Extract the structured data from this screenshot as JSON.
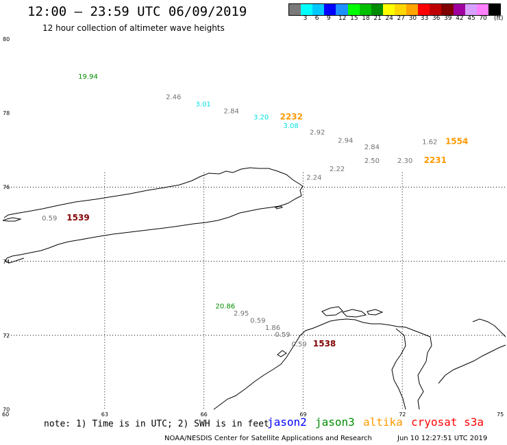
{
  "header": {
    "title": "12:00 – 23:59 UTC 06/09/2019",
    "subtitle": "12 hour collection of altimeter wave heights",
    "scale_unit": "(ft)"
  },
  "color_scale": [
    {
      "color": "#7a7a7a",
      "label": ""
    },
    {
      "color": "#00ffff",
      "label": "3"
    },
    {
      "color": "#00c8ff",
      "label": "6"
    },
    {
      "color": "#0000ff",
      "label": "9"
    },
    {
      "color": "#1e90ff",
      "label": "12"
    },
    {
      "color": "#00ff00",
      "label": "15"
    },
    {
      "color": "#00c000",
      "label": "18"
    },
    {
      "color": "#008c00",
      "label": "21"
    },
    {
      "color": "#ffff00",
      "label": "24"
    },
    {
      "color": "#ffd700",
      "label": "27"
    },
    {
      "color": "#ffa500",
      "label": "30"
    },
    {
      "color": "#ff0000",
      "label": "33"
    },
    {
      "color": "#c00000",
      "label": "36"
    },
    {
      "color": "#800000",
      "label": "39"
    },
    {
      "color": "#a000a0",
      "label": "42"
    },
    {
      "color": "#d8a0ff",
      "label": "45"
    },
    {
      "color": "#ff80ff",
      "label": "70"
    },
    {
      "color": "#000000",
      "label": ""
    }
  ],
  "axes": {
    "lat_labels": [
      "80",
      "78",
      "76",
      "74",
      "72",
      "70"
    ],
    "lon_labels": [
      "60",
      "63",
      "66",
      "69",
      "72",
      "75"
    ]
  },
  "observations": [
    {
      "text": "19.94",
      "color": "#008c00",
      "lon": 62.2,
      "lat": 78.93
    },
    {
      "text": "2.46",
      "color": "#707070",
      "lon": 64.85,
      "lat": 78.37
    },
    {
      "text": "3.01",
      "color": "#00e0e0",
      "lon": 65.75,
      "lat": 78.18
    },
    {
      "text": "2.84",
      "color": "#707070",
      "lon": 66.6,
      "lat": 77.99
    },
    {
      "text": "3.20",
      "color": "#00e0e0",
      "lon": 67.5,
      "lat": 77.83
    },
    {
      "text": "2232",
      "color": "#ff9900",
      "lon": 68.3,
      "lat": 77.83,
      "bold": true
    },
    {
      "text": "3.08",
      "color": "#00e0e0",
      "lon": 68.4,
      "lat": 77.6
    },
    {
      "text": "2.92",
      "color": "#707070",
      "lon": 69.2,
      "lat": 77.42
    },
    {
      "text": "2.94",
      "color": "#707070",
      "lon": 70.05,
      "lat": 77.2
    },
    {
      "text": "2.84",
      "color": "#707070",
      "lon": 70.85,
      "lat": 77.02
    },
    {
      "text": "1.62",
      "color": "#707070",
      "lon": 72.6,
      "lat": 77.16
    },
    {
      "text": "1554",
      "color": "#ff9900",
      "lon": 73.3,
      "lat": 77.16,
      "bold": true
    },
    {
      "text": "2.50",
      "color": "#707070",
      "lon": 70.85,
      "lat": 76.65
    },
    {
      "text": "2.30",
      "color": "#707070",
      "lon": 71.85,
      "lat": 76.65
    },
    {
      "text": "2231",
      "color": "#ff9900",
      "lon": 72.65,
      "lat": 76.65,
      "bold": true
    },
    {
      "text": "2.22",
      "color": "#707070",
      "lon": 69.8,
      "lat": 76.43
    },
    {
      "text": "2.24",
      "color": "#707070",
      "lon": 69.1,
      "lat": 76.2
    },
    {
      "text": "0.59",
      "color": "#707070",
      "lon": 61.1,
      "lat": 75.1
    },
    {
      "text": "1539",
      "color": "#800000",
      "lon": 61.85,
      "lat": 75.1,
      "bold": true
    },
    {
      "text": "20.86",
      "color": "#008c00",
      "lon": 66.35,
      "lat": 72.73
    },
    {
      "text": "2.95",
      "color": "#707070",
      "lon": 66.9,
      "lat": 72.53
    },
    {
      "text": "0.59",
      "color": "#707070",
      "lon": 67.4,
      "lat": 72.34
    },
    {
      "text": "1.86",
      "color": "#707070",
      "lon": 67.85,
      "lat": 72.14
    },
    {
      "text": "0.59",
      "color": "#707070",
      "lon": 68.15,
      "lat": 71.96
    },
    {
      "text": "0.59",
      "color": "#707070",
      "lon": 68.65,
      "lat": 71.7
    },
    {
      "text": "1538",
      "color": "#800000",
      "lon": 69.3,
      "lat": 71.7,
      "bold": true
    }
  ],
  "footer": {
    "note": "note:  1) Time is in UTC; 2) SWH is in feet",
    "satellites": [
      {
        "label": "jason2",
        "color": "#0000ff"
      },
      {
        "label": "jason3",
        "color": "#008c00"
      },
      {
        "label": "altika",
        "color": "#ff9900"
      },
      {
        "label": "cryosat s3a",
        "color": "#ff0000"
      }
    ],
    "credit": "NOAA/NESDIS Center for Satellite Applications and Research",
    "timestamp": "Jun 10 12:27:51 UTC 2019"
  }
}
